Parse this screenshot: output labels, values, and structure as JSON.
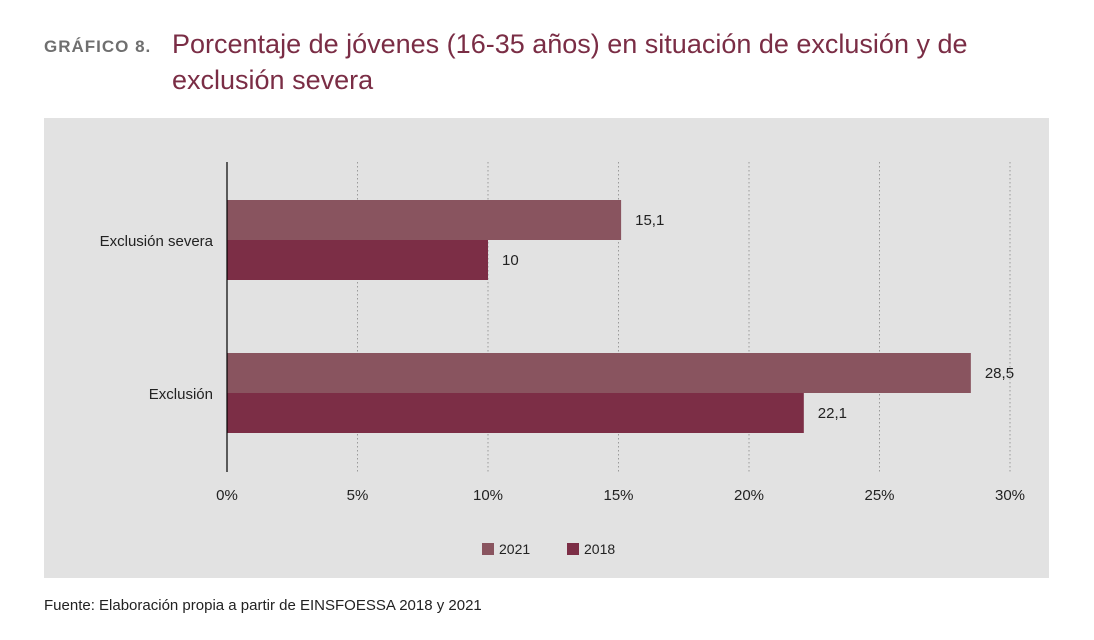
{
  "header": {
    "label": "GRÁFICO 8.",
    "title": "Porcentaje de jóvenes (16-35 años) en situación de exclusión y de exclusión severa"
  },
  "source": "Fuente: Elaboración propia a partir de EINSFOESSA 2018 y 2021",
  "chart_data": {
    "type": "bar",
    "orientation": "horizontal",
    "categories": [
      "Exclusión severa",
      "Exclusión"
    ],
    "series": [
      {
        "name": "2021",
        "color": "#89545f",
        "values": [
          15.1,
          28.5
        ],
        "labels": [
          "15,1",
          "28,5"
        ]
      },
      {
        "name": "2018",
        "color": "#7c2e46",
        "values": [
          10,
          22.1
        ],
        "labels": [
          "10",
          "22,1"
        ]
      }
    ],
    "x_ticks": [
      0,
      5,
      10,
      15,
      20,
      25,
      30
    ],
    "x_tick_labels": [
      "0%",
      "5%",
      "10%",
      "15%",
      "20%",
      "25%",
      "30%"
    ],
    "xlim": [
      0,
      30
    ],
    "grid": "vertical dotted",
    "legend_position": "bottom-center",
    "background": "#e2e2e2"
  }
}
